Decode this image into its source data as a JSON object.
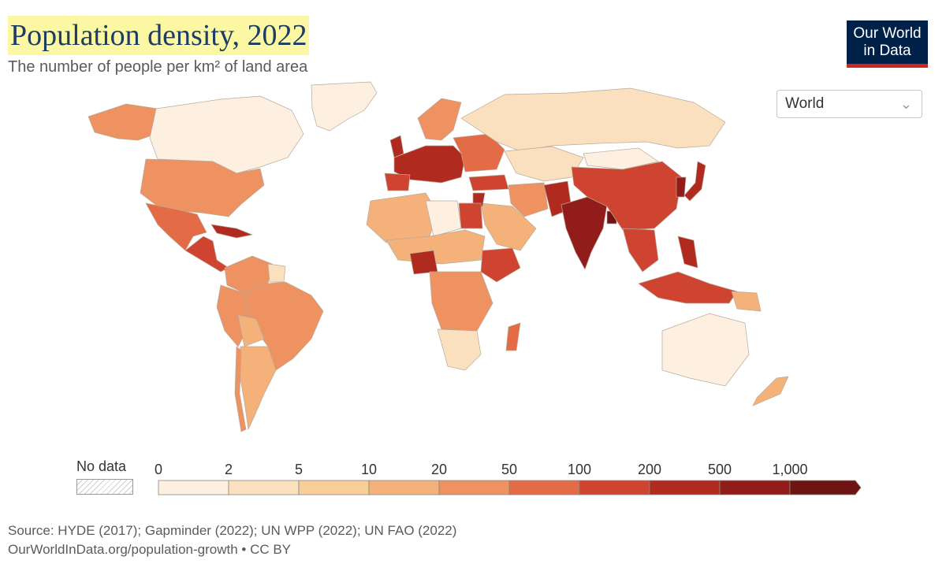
{
  "header": {
    "title": "Population density, 2022",
    "subtitle": "The number of people per km² of land area"
  },
  "logo": {
    "line1": "Our World",
    "line2": "in Data"
  },
  "region_select": {
    "value": "World"
  },
  "legend": {
    "no_data_label": "No data",
    "bins": [
      {
        "from": "0",
        "to": "2",
        "color": "#fdf0e1"
      },
      {
        "from": "2",
        "to": "5",
        "color": "#fbe0bf"
      },
      {
        "from": "5",
        "to": "10",
        "color": "#f7cd98"
      },
      {
        "from": "10",
        "to": "20",
        "color": "#f4b27a"
      },
      {
        "from": "20",
        "to": "50",
        "color": "#ee9262"
      },
      {
        "from": "50",
        "to": "100",
        "color": "#e36c47"
      },
      {
        "from": "100",
        "to": "200",
        "color": "#cf4331"
      },
      {
        "from": "200",
        "to": "500",
        "color": "#b12a1f"
      },
      {
        "from": "500",
        "to": "1,000",
        "color": "#921c1a"
      },
      {
        "from": "1,000",
        "to": "",
        "color": "#6e1413"
      }
    ]
  },
  "footer": {
    "source": "Source: HYDE (2017); Gapminder (2022); UN WPP (2022); UN FAO (2022)",
    "url": "OurWorldInData.org/population-growth • CC BY"
  }
}
